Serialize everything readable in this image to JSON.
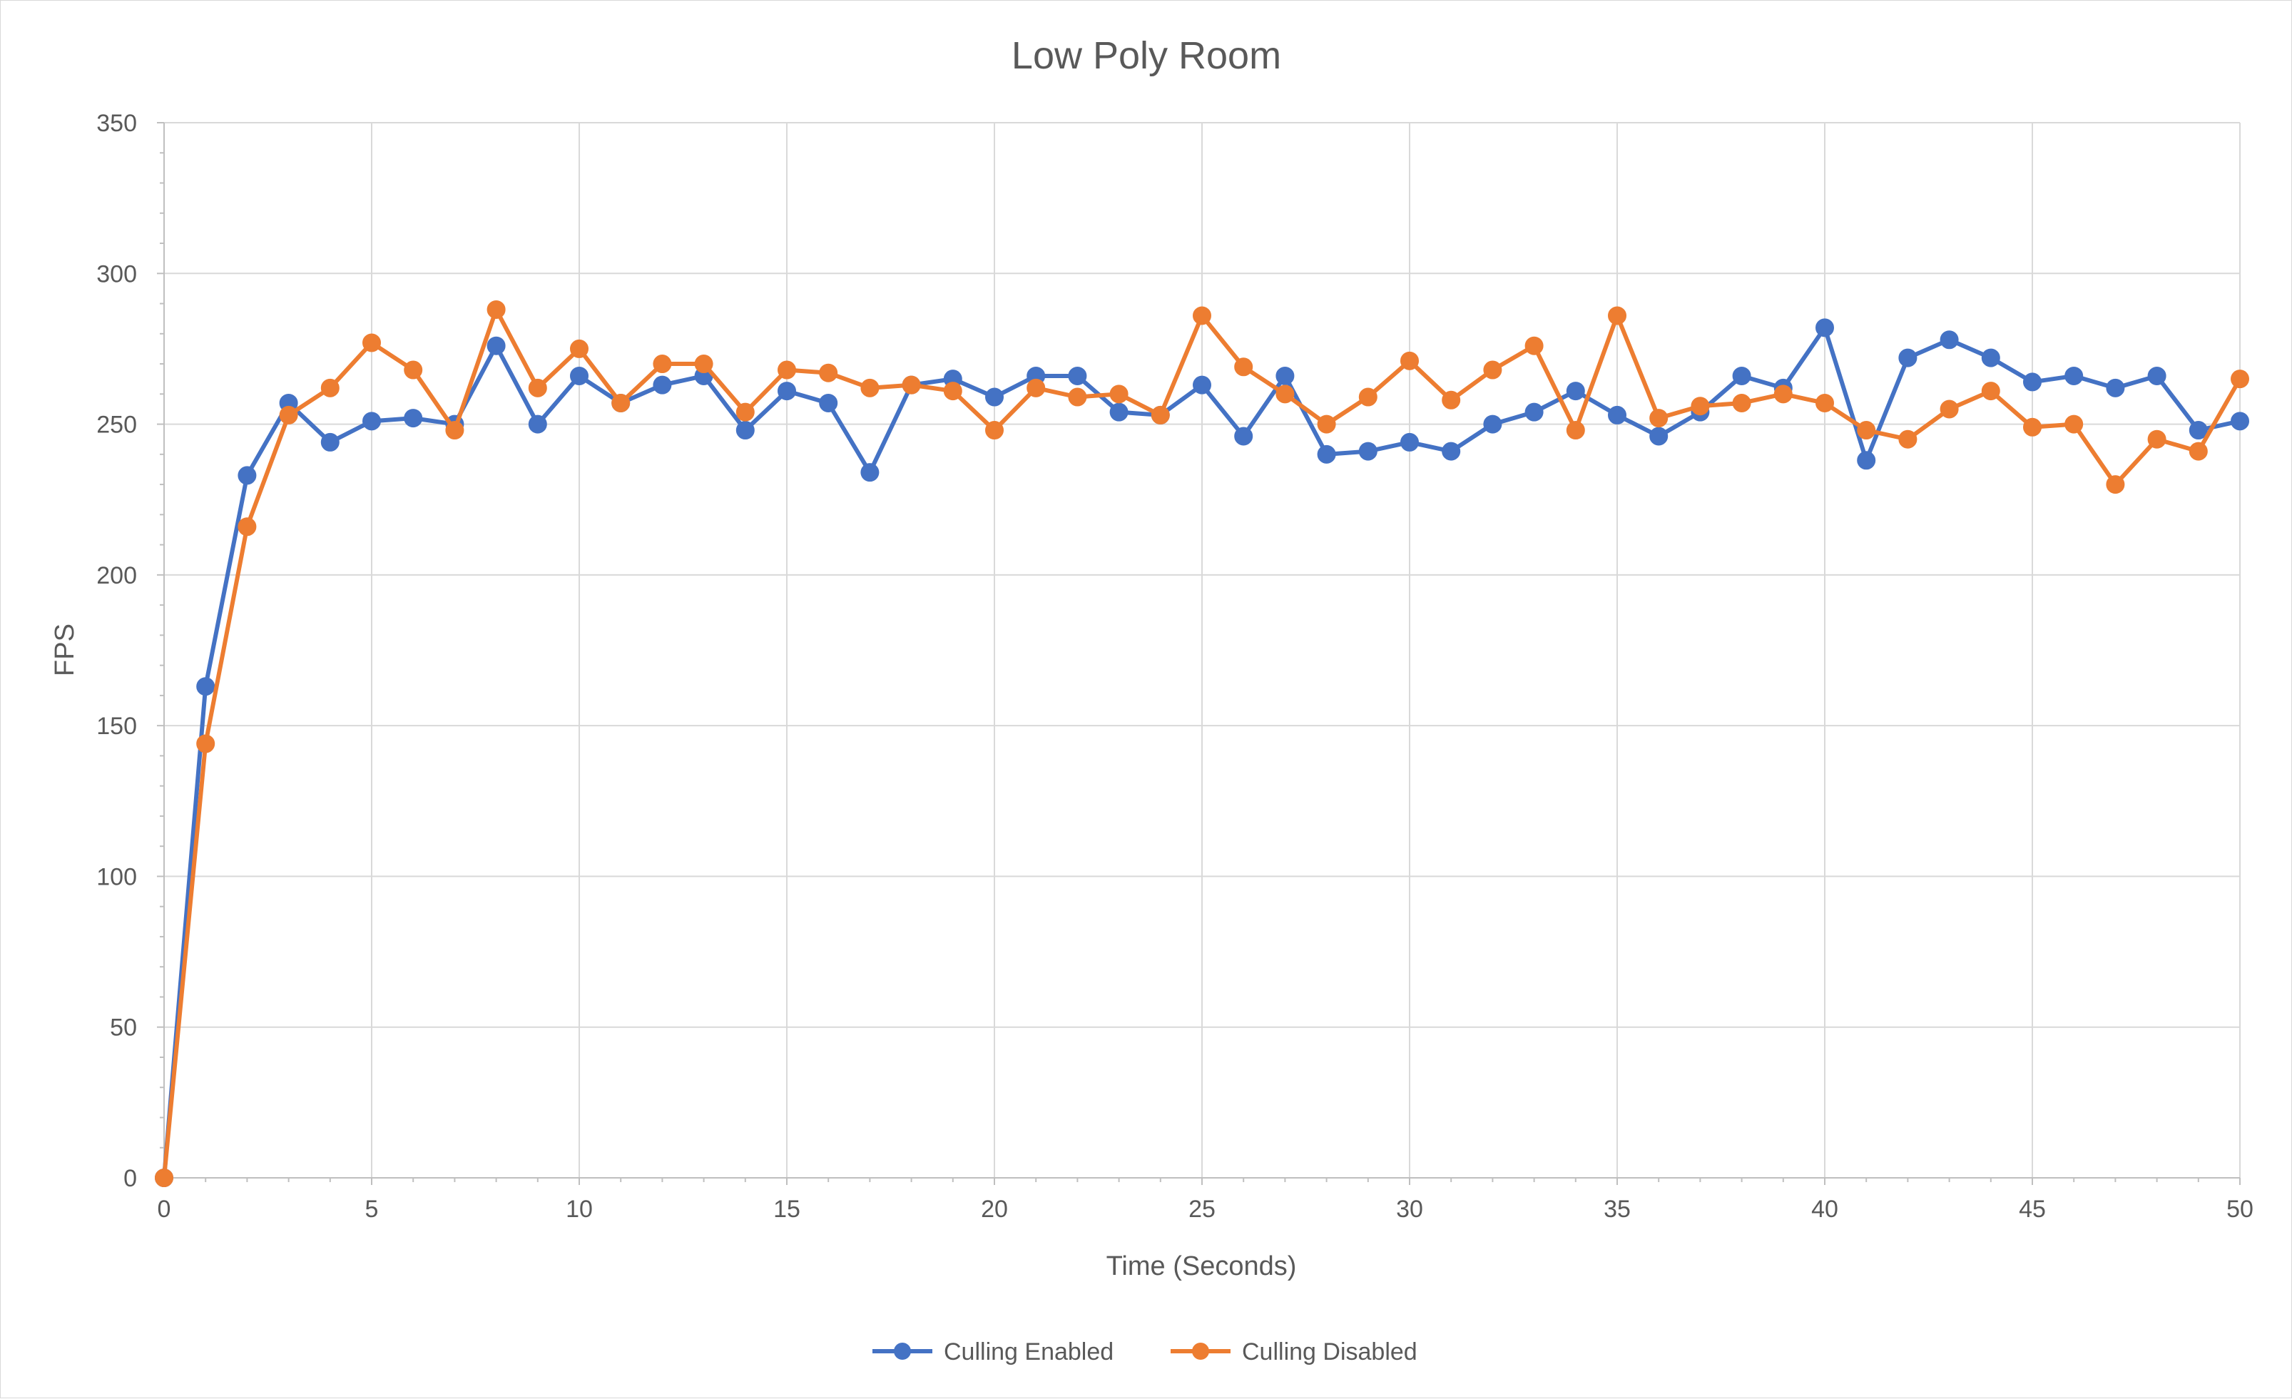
{
  "chart_data": {
    "type": "line",
    "title": "Low Poly Room",
    "xlabel": "Time (Seconds)",
    "ylabel": "FPS",
    "xlim": [
      0,
      50
    ],
    "ylim": [
      0,
      350
    ],
    "x_ticks": [
      0,
      5,
      10,
      15,
      20,
      25,
      30,
      35,
      40,
      45,
      50
    ],
    "y_ticks": [
      0,
      50,
      100,
      150,
      200,
      250,
      300,
      350
    ],
    "grid": true,
    "legend_position": "bottom-center",
    "x": [
      0,
      1,
      2,
      3,
      4,
      5,
      6,
      7,
      8,
      9,
      10,
      11,
      12,
      13,
      14,
      15,
      16,
      17,
      18,
      19,
      20,
      21,
      22,
      23,
      24,
      25,
      26,
      27,
      28,
      29,
      30,
      31,
      32,
      33,
      34,
      35,
      36,
      37,
      38,
      39,
      40,
      41,
      42,
      43,
      44,
      45,
      46,
      47,
      48,
      49,
      50
    ],
    "series": [
      {
        "name": "Culling Enabled",
        "color": "#4472c4",
        "values": [
          0,
          163,
          233,
          257,
          244,
          251,
          252,
          250,
          276,
          250,
          266,
          257,
          263,
          266,
          248,
          261,
          257,
          234,
          263,
          265,
          259,
          266,
          266,
          254,
          253,
          263,
          246,
          266,
          240,
          241,
          244,
          241,
          250,
          254,
          261,
          253,
          246,
          254,
          266,
          262,
          282,
          238,
          272,
          278,
          272,
          264,
          266,
          262,
          266,
          248,
          251
        ]
      },
      {
        "name": "Culling Disabled",
        "color": "#ed7d31",
        "values": [
          0,
          144,
          216,
          253,
          262,
          277,
          268,
          248,
          288,
          262,
          275,
          257,
          270,
          270,
          254,
          268,
          267,
          262,
          263,
          261,
          248,
          262,
          259,
          260,
          253,
          286,
          269,
          260,
          250,
          259,
          271,
          258,
          268,
          276,
          248,
          286,
          252,
          256,
          257,
          260,
          257,
          248,
          245,
          255,
          261,
          249,
          250,
          230,
          245,
          241,
          265
        ]
      }
    ]
  }
}
